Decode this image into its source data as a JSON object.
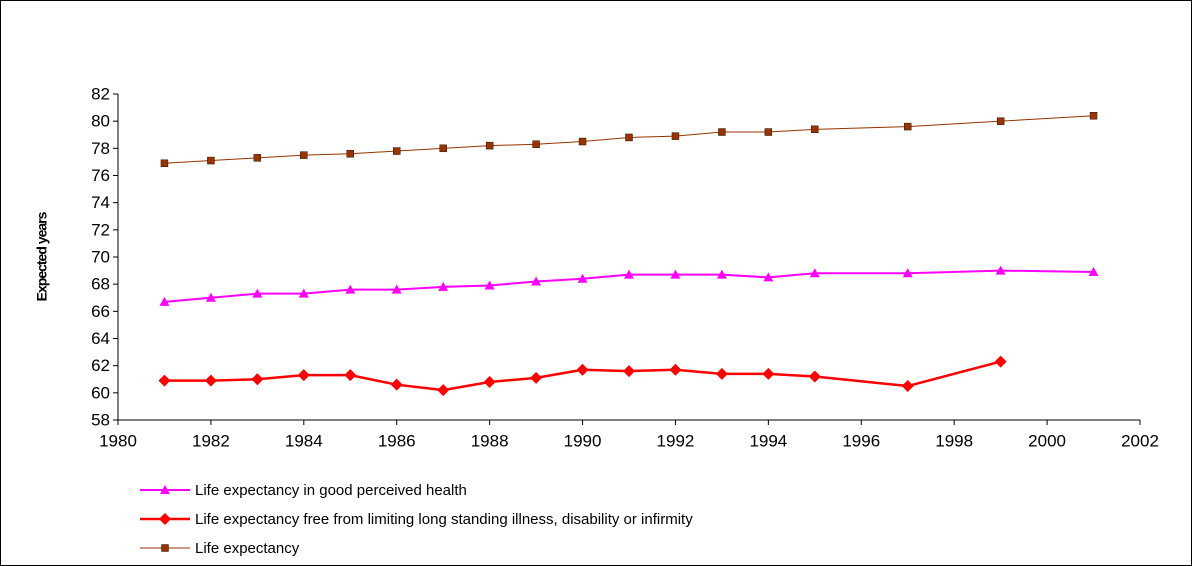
{
  "chart_data": {
    "type": "line",
    "y_label": "Expected years",
    "x": [
      1981,
      1982,
      1983,
      1984,
      1985,
      1986,
      1987,
      1988,
      1989,
      1990,
      1991,
      1992,
      1993,
      1994,
      1995,
      1997,
      1999,
      2001
    ],
    "series": [
      {
        "name": "Life expectancy in good perceived health",
        "color": "#ff00ff",
        "marker": "triangle",
        "values": [
          66.7,
          67.0,
          67.3,
          67.3,
          67.6,
          67.6,
          67.8,
          67.9,
          68.2,
          68.4,
          68.7,
          68.7,
          68.7,
          68.5,
          68.8,
          68.8,
          69.0,
          68.9
        ]
      },
      {
        "name": "Life expectancy free from limiting long standing illness, disability or infirmity",
        "color": "#ff0000",
        "marker": "diamond",
        "values": [
          60.9,
          60.9,
          61.0,
          61.3,
          61.3,
          60.6,
          60.2,
          60.8,
          61.1,
          61.7,
          61.6,
          61.7,
          61.4,
          61.4,
          61.2,
          60.5,
          62.3,
          null
        ]
      },
      {
        "name": "Life expectancy",
        "color": "#993300",
        "marker": "square",
        "values": [
          76.9,
          77.1,
          77.3,
          77.5,
          77.6,
          77.8,
          78.0,
          78.2,
          78.3,
          78.5,
          78.8,
          78.9,
          79.2,
          79.2,
          79.4,
          79.6,
          80.0,
          80.4
        ]
      }
    ],
    "xlim": [
      1980,
      2002
    ],
    "xticks": [
      1980,
      1982,
      1984,
      1986,
      1988,
      1990,
      1992,
      1994,
      1996,
      1998,
      2000,
      2002
    ],
    "ylim": [
      58,
      82
    ],
    "yticks": [
      58,
      60,
      62,
      64,
      66,
      68,
      70,
      72,
      74,
      76,
      78,
      80,
      82
    ],
    "grid": false
  }
}
